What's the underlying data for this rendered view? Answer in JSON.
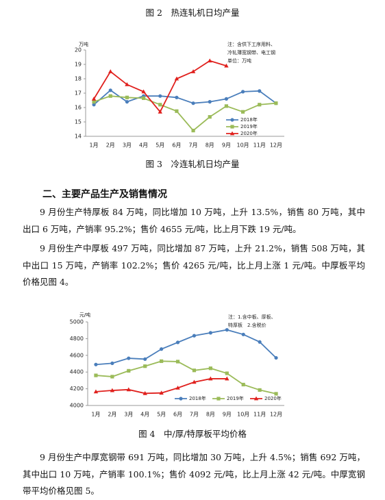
{
  "top_caption": "图 2　热连轧机日均产量",
  "section_heading": "二、主要产品生产及销售情况",
  "paragraphs": [
    "9 月份生产特厚板 84 万吨，同比增加 10 万吨，上升 13.5%，销售 80 万吨，其中出口 6 万吨，产销率 95.2%；售价 4655 元/吨，比上月下跌 19 元/吨。",
    "9 月份生产中厚板 497 万吨，同比增加 87 万吨，上升 21.2%，销售 508 万吨，其中出口 15 万吨，产销率 102.2%；售价 4265 元/吨，比上月上涨 1 元/吨。中厚板平均价格见图 4。",
    "9 月份生产中厚宽钢带 691 万吨，同比增加 30 万吨，上升 4.5%；销售 692 万吨，其中出口 10 万吨，产销率 100.1%；售价 4092 元/吨，比上月上涨 42 元/吨。中厚宽钢带平均价格见图 5。"
  ],
  "chart_data": [
    {
      "type": "line",
      "title": "图 3　冷连轧机日均产量",
      "y_unit": "万吨",
      "note": [
        "注：含供下工序用料、",
        "冷轧薄宽钢带、电工钢",
        "单位：万吨"
      ],
      "categories": [
        "1月",
        "2月",
        "3月",
        "4月",
        "5月",
        "6月",
        "7月",
        "8月",
        "9月",
        "10月",
        "11月",
        "12月"
      ],
      "ylim": [
        14,
        20
      ],
      "yticks": [
        14,
        15,
        16,
        17,
        18,
        19,
        20
      ],
      "grid": false,
      "legend": "lower-right-vertical",
      "series": [
        {
          "name": "2018年",
          "color": "#4a7ebb",
          "marker": "circle",
          "values": [
            16.2,
            17.2,
            16.4,
            16.8,
            16.8,
            16.7,
            16.3,
            16.4,
            16.6,
            17.1,
            17.15,
            16.3
          ]
        },
        {
          "name": "2019年",
          "color": "#9bbb59",
          "marker": "square",
          "values": [
            16.4,
            16.8,
            16.7,
            16.65,
            16.2,
            15.75,
            14.4,
            15.35,
            16.1,
            15.7,
            16.2,
            16.3
          ]
        },
        {
          "name": "2020年",
          "color": "#e0201d",
          "marker": "triangle",
          "values": [
            16.6,
            18.5,
            17.6,
            17.1,
            15.7,
            18.0,
            18.5,
            19.25,
            18.9,
            null,
            null,
            null
          ]
        }
      ]
    },
    {
      "type": "line",
      "title": "图 4　中/厚/特厚板平均价格",
      "y_unit": "元/吨",
      "note": [
        "注：1.含中板、厚板、",
        "特厚板　2.含税价"
      ],
      "categories": [
        "1月",
        "2月",
        "3月",
        "4月",
        "5月",
        "6月",
        "7月",
        "8月",
        "9月",
        "10月",
        "11月",
        "12月"
      ],
      "ylim": [
        4000,
        5000
      ],
      "yticks": [
        4000,
        4200,
        4400,
        4600,
        4800,
        5000
      ],
      "grid": false,
      "legend": "bottom-horizontal",
      "series": [
        {
          "name": "2018年",
          "color": "#4a7ebb",
          "marker": "circle",
          "values": [
            4490,
            4505,
            4565,
            4555,
            4675,
            4755,
            4835,
            4870,
            4905,
            4850,
            4760,
            4570
          ]
        },
        {
          "name": "2019年",
          "color": "#9bbb59",
          "marker": "square",
          "values": [
            4360,
            4345,
            4415,
            4470,
            4530,
            4525,
            4420,
            4445,
            4385,
            4250,
            4185,
            4140
          ]
        },
        {
          "name": "2020年",
          "color": "#e0201d",
          "marker": "triangle",
          "values": [
            4165,
            4180,
            4190,
            4145,
            4150,
            4210,
            4280,
            4320,
            4320,
            null,
            null,
            null
          ]
        }
      ]
    }
  ]
}
